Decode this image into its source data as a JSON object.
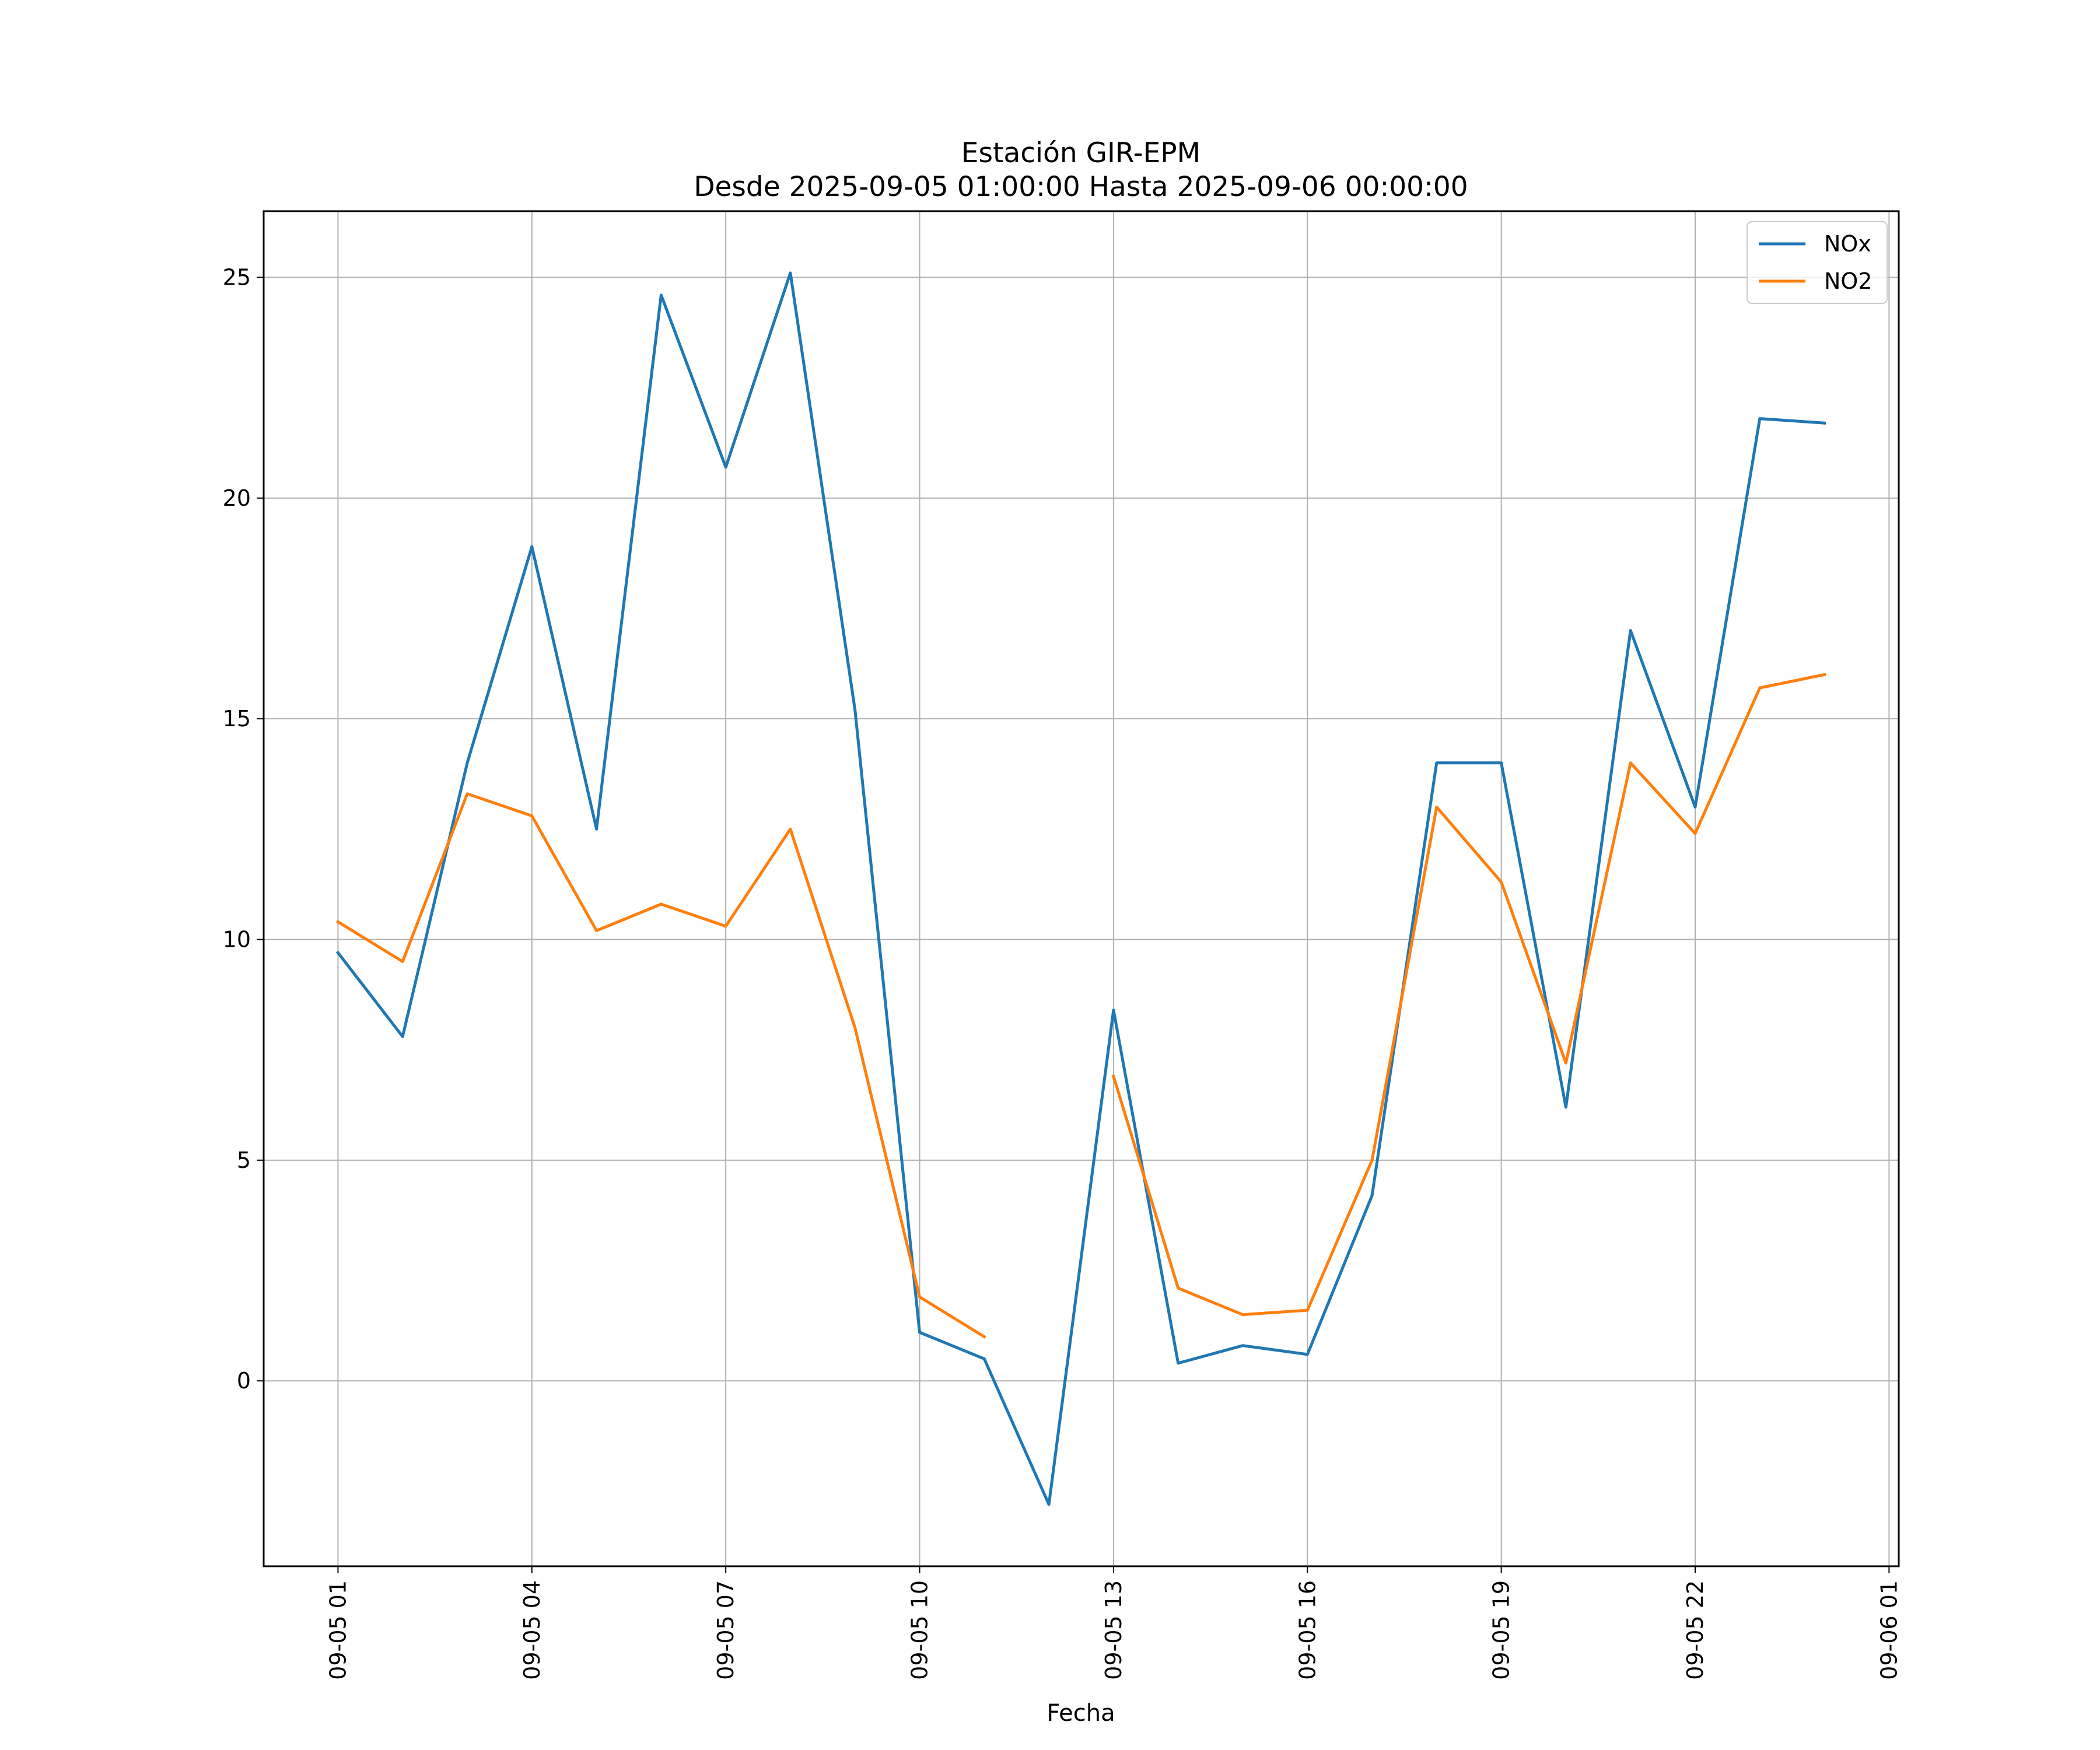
{
  "chart_data": {
    "type": "line",
    "title": "Estación GIR-EPM",
    "subtitle": "Desde 2025-09-05 01:00:00 Hasta 2025-09-06 00:00:00",
    "xlabel": "Fecha",
    "ylabel": "",
    "x": [
      "2025-09-05 01:00",
      "2025-09-05 02:00",
      "2025-09-05 03:00",
      "2025-09-05 04:00",
      "2025-09-05 05:00",
      "2025-09-05 06:00",
      "2025-09-05 07:00",
      "2025-09-05 08:00",
      "2025-09-05 09:00",
      "2025-09-05 10:00",
      "2025-09-05 11:00",
      "2025-09-05 12:00",
      "2025-09-05 13:00",
      "2025-09-05 14:00",
      "2025-09-05 15:00",
      "2025-09-05 16:00",
      "2025-09-05 17:00",
      "2025-09-05 18:00",
      "2025-09-05 19:00",
      "2025-09-05 20:00",
      "2025-09-05 21:00",
      "2025-09-05 22:00",
      "2025-09-05 23:00",
      "2025-09-06 00:00"
    ],
    "series": [
      {
        "name": "NOx",
        "color": "#1f77b4",
        "values": [
          9.7,
          7.8,
          14.0,
          18.9,
          12.5,
          24.6,
          20.7,
          25.1,
          15.2,
          1.1,
          0.5,
          -2.8,
          8.4,
          0.4,
          0.8,
          0.6,
          4.2,
          14.0,
          14.0,
          6.2,
          17.0,
          13.0,
          21.8,
          21.7
        ]
      },
      {
        "name": "NO2",
        "color": "#ff7f0e",
        "values": [
          10.4,
          9.5,
          13.3,
          12.8,
          10.2,
          10.8,
          10.3,
          12.5,
          8.0,
          1.9,
          1.0,
          null,
          6.9,
          2.1,
          1.5,
          1.6,
          5.0,
          13.0,
          11.3,
          7.2,
          14.0,
          12.4,
          15.7,
          16.0
        ]
      }
    ],
    "xticks": [
      "09-05 01",
      "09-05 04",
      "09-05 07",
      "09-05 10",
      "09-05 13",
      "09-05 16",
      "09-05 19",
      "09-05 22",
      "09-06 01"
    ],
    "yticks": [
      0,
      5,
      10,
      15,
      20,
      25
    ],
    "xlim": [
      "2025-09-04 23:51",
      "2025-09-06 01:09"
    ],
    "ylim": [
      -4.2,
      26.5
    ],
    "grid": true,
    "legend_position": "top-right"
  }
}
